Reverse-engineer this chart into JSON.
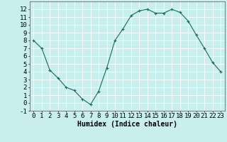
{
  "x": [
    0,
    1,
    2,
    3,
    4,
    5,
    6,
    7,
    8,
    9,
    10,
    11,
    12,
    13,
    14,
    15,
    16,
    17,
    18,
    19,
    20,
    21,
    22,
    23
  ],
  "y": [
    8.0,
    7.0,
    4.2,
    3.2,
    2.0,
    1.6,
    0.5,
    -0.2,
    1.5,
    4.5,
    8.0,
    9.5,
    11.2,
    11.8,
    12.0,
    11.5,
    11.5,
    12.0,
    11.6,
    10.5,
    8.7,
    7.0,
    5.2,
    4.0
  ],
  "xlabel": "Humidex (Indice chaleur)",
  "ylim": [
    -1,
    13
  ],
  "xlim": [
    -0.5,
    23.5
  ],
  "line_color": "#1a6b5a",
  "marker_color": "#1a6b5a",
  "bg_color": "#c8eeee",
  "grid_color": "#b0d8d8",
  "tick_labels_x": [
    "0",
    "1",
    "2",
    "3",
    "4",
    "5",
    "6",
    "7",
    "8",
    "9",
    "10",
    "11",
    "12",
    "13",
    "14",
    "15",
    "16",
    "17",
    "18",
    "19",
    "20",
    "21",
    "22",
    "23"
  ],
  "yticks": [
    -1,
    0,
    1,
    2,
    3,
    4,
    5,
    6,
    7,
    8,
    9,
    10,
    11,
    12
  ],
  "xlabel_fontsize": 7,
  "tick_fontsize": 6.5
}
